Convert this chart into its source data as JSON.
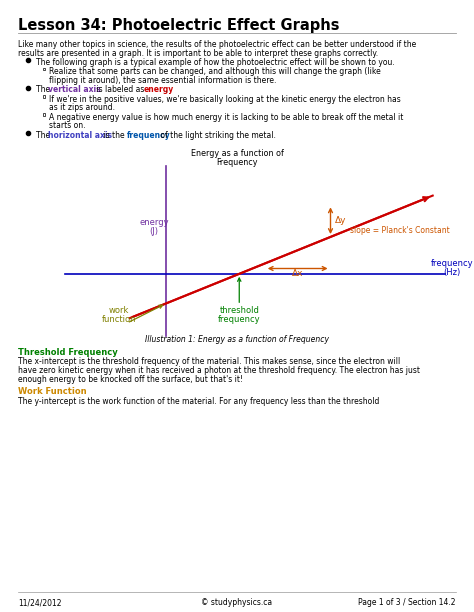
{
  "title": "Lesson 34: Photoelectric Effect Graphs",
  "intro_line1": "Like many other topics in science, the results of the photoelectric effect can be better understood if the",
  "intro_line2": "results are presented in a graph. It is important to be able to interpret these graphs correctly.",
  "bullet1": "The following graph is a typical example of how the photoelectric effect will be shown to you.",
  "sub1a_line1": "Realize that some parts can be changed, and although this will change the graph (like",
  "sub1a_line2": "flipping it around), the same essential information is there.",
  "sub2a_line1": "If we're in the positive values, we're basically looking at the kinetic energy the electron has",
  "sub2a_line2": "as it zips around.",
  "sub2b_line1": "A negative energy value is how much energy it is lacking to be able to break off the metal it",
  "sub2b_line2": "starts on.",
  "graph_title_line1": "Energy as a function of",
  "graph_title_line2": "Frequency",
  "graph_ylabel_line1": "energy",
  "graph_ylabel_line2": "(J)",
  "graph_xlabel_line1": "frequency",
  "graph_xlabel_line2": "(Hz)",
  "slope_label": "slope = Planck's Constant",
  "delta_y_label": "Δy",
  "delta_x_label": "Δx",
  "work_function_line1": "work",
  "work_function_line2": "function",
  "threshold_freq_line1": "threshold",
  "threshold_freq_line2": "frequency",
  "illustration_caption": "Illustration 1: Energy as a function of Frequency",
  "section_title1": "Threshold Frequency",
  "section_text1_line1": "The x-intercept is the threshold frequency of the material. This makes sense, since the electron will",
  "section_text1_line2": "have zero kinetic energy when it has received a photon at the threshold frequency. The electron has just",
  "section_text1_line3": "enough energy to be knocked off the surface, but that's it!",
  "section_title2": "Work Function",
  "section_text2": "The y-intercept is the work function of the material. For any frequency less than the threshold",
  "footer_left": "11/24/2012",
  "footer_center": "© studyphysics.ca",
  "footer_right": "Page 1 of 3 / Section 14.2",
  "color_title": "#000000",
  "color_vertical_axis": "#7030a0",
  "color_energy_red": "#cc0000",
  "color_horizontal_axis": "#4040c0",
  "color_frequency_blue": "#0055aa",
  "color_graph_line": "#cc0000",
  "color_yaxis_purple": "#7030a0",
  "color_xaxis_blue": "#0000bb",
  "color_delta": "#cc5500",
  "color_work_function": "#808000",
  "color_threshold": "#008000",
  "color_section_title1": "#008000",
  "color_section_title2": "#cc8800",
  "background": "#ffffff"
}
